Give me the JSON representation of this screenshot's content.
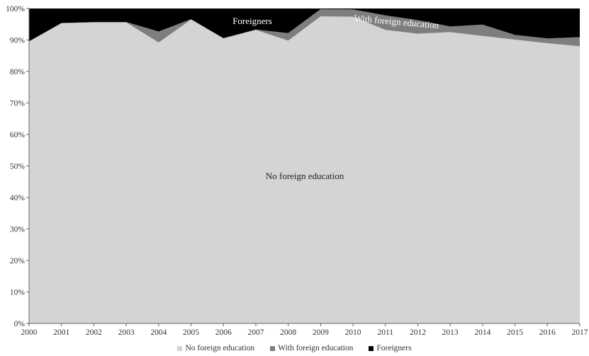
{
  "chart_data": {
    "type": "area",
    "stacked": true,
    "x": [
      2000,
      2001,
      2002,
      2003,
      2004,
      2005,
      2006,
      2007,
      2008,
      2009,
      2010,
      2011,
      2012,
      2013,
      2014,
      2015,
      2016,
      2017
    ],
    "series": [
      {
        "name": "No foreign education",
        "color": "#d4d4d2",
        "values": [
          89.5,
          95.3,
          95.6,
          95.6,
          89.2,
          96.5,
          90.5,
          93.2,
          89.8,
          97.5,
          97.4,
          93.2,
          92.0,
          92.5,
          91.3,
          90.1,
          89.0,
          88.0
        ]
      },
      {
        "name": "With foreign education",
        "color": "#7e7e7e",
        "values": [
          0.1,
          0.1,
          0.1,
          0.1,
          3.5,
          0.1,
          0.1,
          0.1,
          2.4,
          2.3,
          2.3,
          4.6,
          4.3,
          1.8,
          3.6,
          1.5,
          1.5,
          2.9
        ]
      },
      {
        "name": "Foreigners",
        "color": "#000000",
        "values": [
          10.4,
          4.6,
          4.3,
          4.3,
          7.3,
          3.4,
          9.4,
          6.7,
          7.8,
          0.2,
          0.3,
          2.2,
          3.7,
          5.7,
          5.1,
          8.4,
          9.5,
          9.1
        ]
      }
    ],
    "ylim": [
      0,
      100
    ],
    "yticks": [
      "0%",
      "10%",
      "20%",
      "30%",
      "40%",
      "50%",
      "60%",
      "70%",
      "80%",
      "90%",
      "100%"
    ],
    "xticks": [
      "2000",
      "2001",
      "2002",
      "2003",
      "2004",
      "2005",
      "2006",
      "2007",
      "2008",
      "2009",
      "2010",
      "2011",
      "2012",
      "2013",
      "2014",
      "2015",
      "2016",
      "2017"
    ],
    "annotations": {
      "foreigners": "Foreigners",
      "with_foreign": "With foreign education",
      "no_foreign": "No foreign education"
    },
    "legend": {
      "position": "bottom",
      "items": [
        "No foreign education",
        "With foreign education",
        "Foreigners"
      ]
    }
  }
}
